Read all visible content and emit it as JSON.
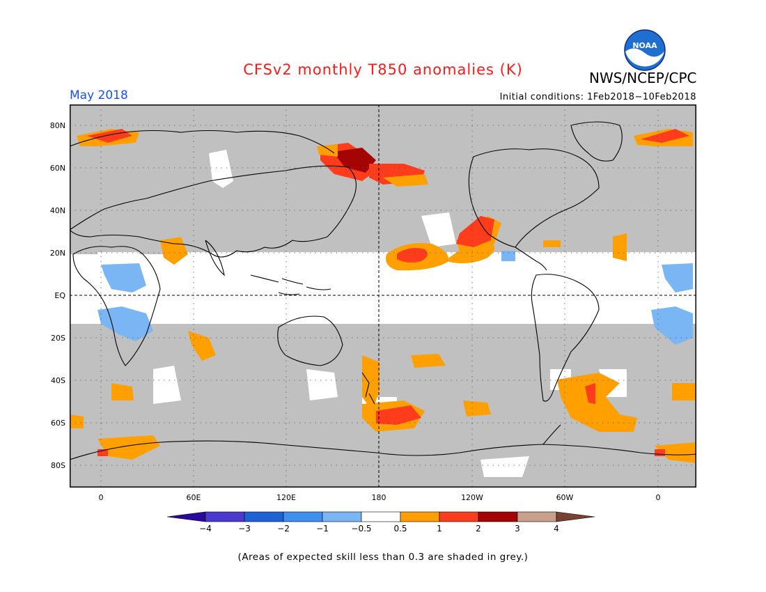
{
  "header": {
    "title": "CFSv2 monthly T850 anomalies (K)",
    "valid_month": "May 2018",
    "initial_conditions": "Initial conditions: 1Feb2018−10Feb2018",
    "agency": "NWS/NCEP/CPC",
    "logo_text": "NOAA"
  },
  "axes": {
    "lat_labels": [
      "80N",
      "60N",
      "40N",
      "20N",
      "EQ",
      "20S",
      "40S",
      "60S",
      "80S"
    ],
    "lon_labels": [
      "0",
      "60E",
      "120E",
      "180",
      "120W",
      "60W",
      "0"
    ]
  },
  "colorbar": {
    "tick_labels": [
      "−4",
      "−3",
      "−2",
      "−1",
      "−0.5",
      "0.5",
      "1",
      "2",
      "3",
      "4"
    ],
    "colors": [
      "#2a0a9e",
      "#4a3ad0",
      "#1f62d8",
      "#3f8ff0",
      "#7ab6f4",
      "#ffffff",
      "#ffa000",
      "#ff3c1c",
      "#a50404",
      "#c8a08c",
      "#7a4030"
    ]
  },
  "legend_colors": {
    "low_skill_grey": "#c0c0c0",
    "ocean_background": "#ffffff",
    "frame": "#000000"
  },
  "footnote": "(Areas of expected skill less than 0.3 are shaded in grey.)"
}
